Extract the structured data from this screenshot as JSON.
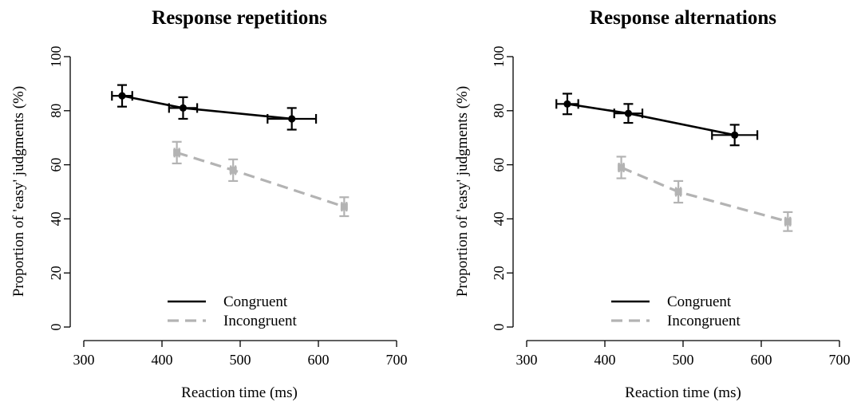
{
  "chart_data": [
    {
      "type": "line",
      "title": "Response repetitions",
      "xlabel": "Reaction time (ms)",
      "ylabel": "Proportion of 'easy' judgments (%)",
      "xlim": [
        300,
        700
      ],
      "ylim": [
        0,
        100
      ],
      "x_ticks": [
        300,
        400,
        500,
        600,
        700
      ],
      "y_ticks": [
        0,
        20,
        40,
        60,
        80,
        100
      ],
      "legend_position": "bottom-center",
      "series": [
        {
          "name": "Congruent",
          "color": "#000000",
          "dash": "solid",
          "points": [
            {
              "x": 349,
              "y": 85.5,
              "x_err": 13,
              "y_err": 4
            },
            {
              "x": 427,
              "y": 81,
              "x_err": 18,
              "y_err": 4
            },
            {
              "x": 566,
              "y": 77,
              "x_err": 31,
              "y_err": 4
            }
          ]
        },
        {
          "name": "Incongruent",
          "color": "#b3b3b3",
          "dash": "dashed",
          "points": [
            {
              "x": 419,
              "y": 64.5,
              "x_err": 3,
              "y_err": 4
            },
            {
              "x": 491,
              "y": 58,
              "x_err": 3,
              "y_err": 4
            },
            {
              "x": 633,
              "y": 44.5,
              "x_err": 3,
              "y_err": 3.5
            }
          ]
        }
      ]
    },
    {
      "type": "line",
      "title": "Response alternations",
      "xlabel": "Reaction time (ms)",
      "ylabel": "Proportion of 'easy' judgments (%)",
      "xlim": [
        300,
        700
      ],
      "ylim": [
        0,
        100
      ],
      "x_ticks": [
        300,
        400,
        500,
        600,
        700
      ],
      "y_ticks": [
        0,
        20,
        40,
        60,
        80,
        100
      ],
      "legend_position": "bottom-center",
      "series": [
        {
          "name": "Congruent",
          "color": "#000000",
          "dash": "solid",
          "points": [
            {
              "x": 352,
              "y": 82.5,
              "x_err": 14,
              "y_err": 3.8
            },
            {
              "x": 430,
              "y": 79,
              "x_err": 18,
              "y_err": 3.5
            },
            {
              "x": 566,
              "y": 71,
              "x_err": 29,
              "y_err": 3.8
            }
          ]
        },
        {
          "name": "Incongruent",
          "color": "#b3b3b3",
          "dash": "dashed",
          "points": [
            {
              "x": 421,
              "y": 59,
              "x_err": 3,
              "y_err": 4
            },
            {
              "x": 494,
              "y": 50,
              "x_err": 3,
              "y_err": 4
            },
            {
              "x": 634,
              "y": 39,
              "x_err": 3,
              "y_err": 3.5
            }
          ]
        }
      ]
    }
  ]
}
